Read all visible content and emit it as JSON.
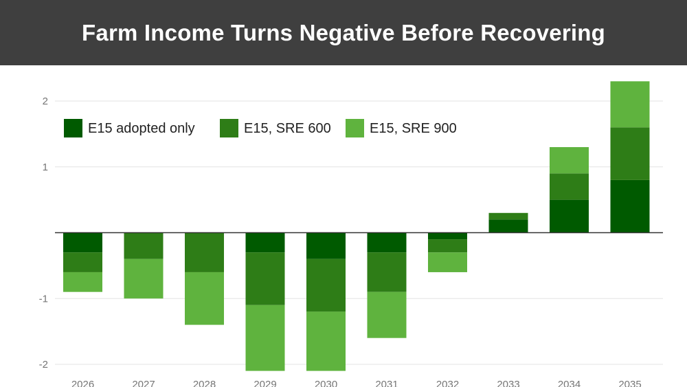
{
  "header": {
    "title": "Farm Income Turns Negative Before Recovering"
  },
  "chart_data": {
    "type": "bar",
    "stacked": true,
    "title": "Farm Income Turns Negative Before Recovering",
    "xlabel": "",
    "ylabel": "",
    "categories": [
      "2026",
      "2027",
      "2028",
      "2029",
      "2030",
      "2031",
      "2032",
      "2033",
      "2034",
      "2035"
    ],
    "series": [
      {
        "name": "E15 adopted only",
        "color": "#005a00",
        "values": [
          -0.3,
          0,
          0,
          -0.3,
          -0.4,
          -0.3,
          -0.1,
          0.2,
          0.5,
          0.8
        ]
      },
      {
        "name": "E15, SRE 600",
        "color": "#2e7d17",
        "values": [
          -0.3,
          -0.4,
          -0.6,
          -0.8,
          -0.8,
          -0.6,
          -0.2,
          0.1,
          0.4,
          0.8
        ]
      },
      {
        "name": "E15, SRE 900",
        "color": "#5fb33e",
        "values": [
          -0.3,
          -0.6,
          -0.8,
          -1.0,
          -0.9,
          -0.7,
          -0.3,
          0,
          0.4,
          0.7
        ]
      }
    ],
    "yticks": [
      -2,
      -1,
      1,
      2
    ],
    "ytick_labels": [
      "-2",
      "-1",
      "1",
      "2"
    ],
    "ylim": [
      -2.15,
      2.3
    ],
    "grid": true,
    "legend": "top-left"
  }
}
